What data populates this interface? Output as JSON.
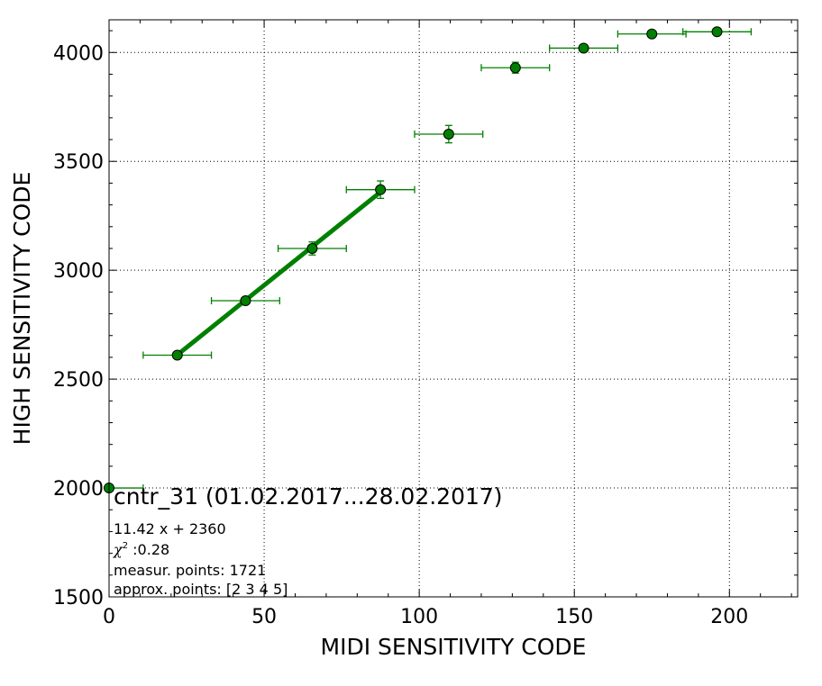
{
  "chart_data": {
    "type": "scatter",
    "xlabel": "MIDI SENSITIVITY CODE",
    "ylabel": "HIGH SENSITIVITY CODE",
    "xlim": [
      0,
      222
    ],
    "ylim": [
      1500,
      4150
    ],
    "xticks": [
      0,
      50,
      100,
      150,
      200
    ],
    "yticks": [
      1500,
      2000,
      2500,
      3000,
      3500,
      4000
    ],
    "grid": true,
    "colors": {
      "series": "#008000",
      "marker_fill": "#008000",
      "marker_edge": "#000000"
    },
    "points": [
      {
        "x": 0,
        "y": 2000,
        "xerr": 11,
        "yerr": 0
      },
      {
        "x": 22,
        "y": 2610,
        "xerr": 11,
        "yerr": 10
      },
      {
        "x": 44,
        "y": 2860,
        "xerr": 11,
        "yerr": 15
      },
      {
        "x": 65.5,
        "y": 3100,
        "xerr": 11,
        "yerr": 30
      },
      {
        "x": 87.5,
        "y": 3370,
        "xerr": 11,
        "yerr": 40
      },
      {
        "x": 109.5,
        "y": 3625,
        "xerr": 11,
        "yerr": 40
      },
      {
        "x": 131,
        "y": 3930,
        "xerr": 11,
        "yerr": 25
      },
      {
        "x": 153,
        "y": 4020,
        "xerr": 11,
        "yerr": 15
      },
      {
        "x": 175,
        "y": 4085,
        "xerr": 11,
        "yerr": 10
      },
      {
        "x": 196,
        "y": 4095,
        "xerr": 11,
        "yerr": 8
      }
    ],
    "fit": {
      "slope": 11.42,
      "intercept": 2360,
      "x_range": [
        22,
        87.5
      ]
    },
    "annotation": {
      "title": "cntr_31 (01.02.2017...28.02.2017)",
      "equation": "11.42 x + 2360",
      "chi_label": "χ",
      "chi_sup": "2",
      "chi_value": " :0.28",
      "measur_points": "measur. points: 1721",
      "approx_points": "approx. points: [2 3 4 5]"
    }
  }
}
